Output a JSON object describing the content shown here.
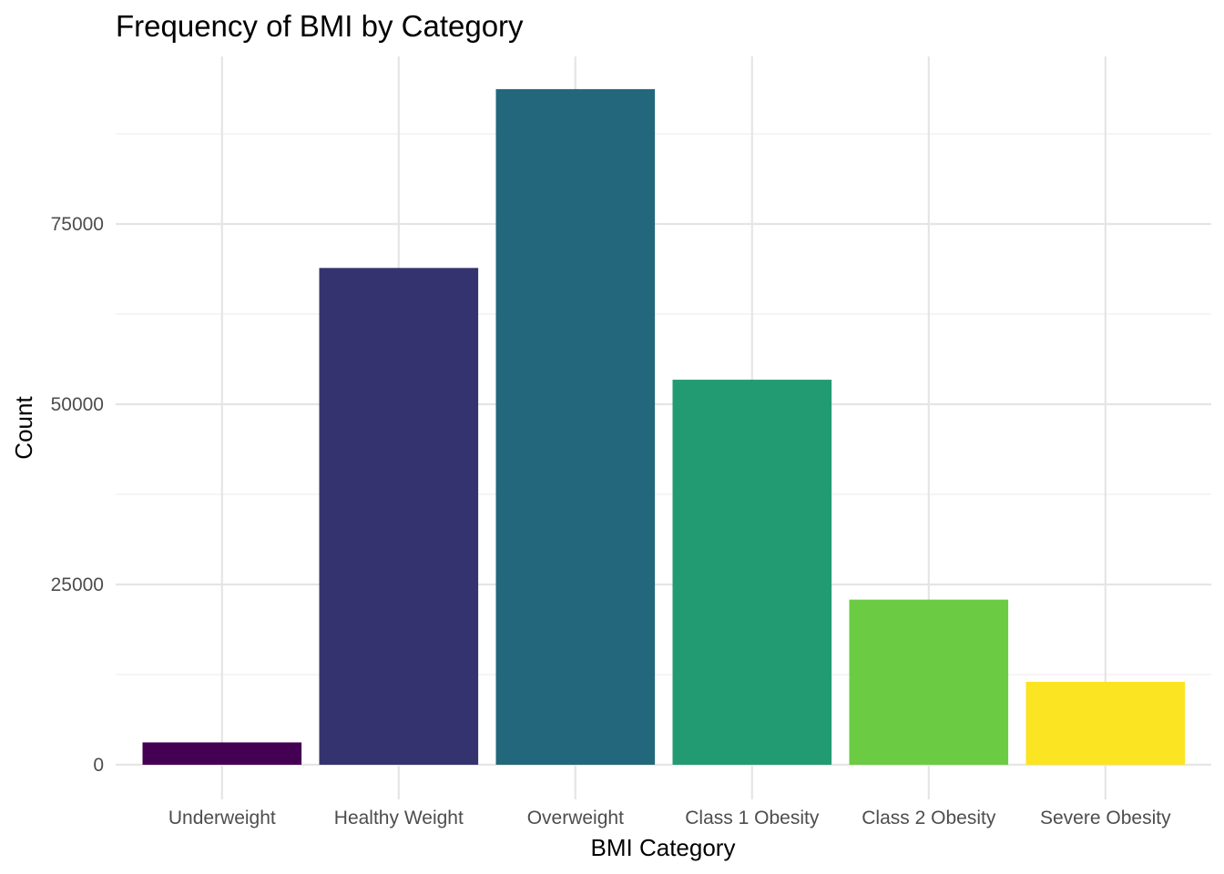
{
  "chart_data": {
    "type": "bar",
    "title": "Frequency of BMI by Category",
    "xlabel": "BMI Category",
    "ylabel": "Count",
    "categories": [
      "Underweight",
      "Healthy Weight",
      "Overweight",
      "Class 1 Obesity",
      "Class 2 Obesity",
      "Severe Obesity"
    ],
    "values": [
      3100,
      68900,
      93700,
      53400,
      22900,
      11500
    ],
    "colors": [
      "#440154",
      "#35336f",
      "#23677c",
      "#229b72",
      "#6bcc43",
      "#fbe421"
    ],
    "ylim": [
      0,
      97800
    ],
    "yticks": [
      0,
      25000,
      50000,
      75000
    ],
    "ytick_labels": [
      "0",
      "25000",
      "50000",
      "75000"
    ],
    "grid": true,
    "legend": "none"
  }
}
